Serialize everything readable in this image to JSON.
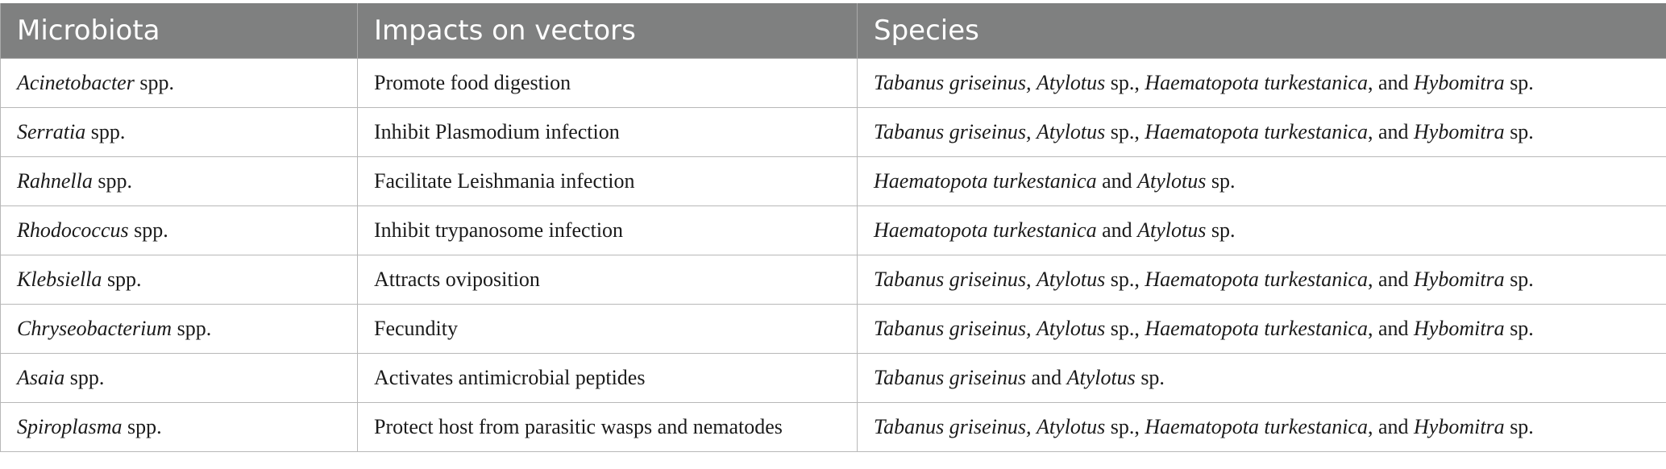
{
  "headers": [
    "Microbiota",
    "Impacts on vectors",
    "Species"
  ],
  "rows": [
    {
      "microbiota": {
        "genus": "Acinetobacter",
        "suffix": " spp."
      },
      "impact": "Promote food digestion",
      "species": [
        {
          "t": "Tabanus griseinus,",
          "i": true
        },
        {
          "t": " ",
          "i": false
        },
        {
          "t": "Atylotus",
          "i": true
        },
        {
          "t": " sp., ",
          "i": false
        },
        {
          "t": "Haematopota turkestanica",
          "i": true
        },
        {
          "t": ", and ",
          "i": false
        },
        {
          "t": "Hybomitra",
          "i": true
        },
        {
          "t": " sp.",
          "i": false
        }
      ]
    },
    {
      "microbiota": {
        "genus": "Serratia",
        "suffix": " spp."
      },
      "impact": "Inhibit Plasmodium infection",
      "species": [
        {
          "t": "Tabanus griseinus,",
          "i": true
        },
        {
          "t": " ",
          "i": false
        },
        {
          "t": "Atylotus",
          "i": true
        },
        {
          "t": " sp., ",
          "i": false
        },
        {
          "t": "Haematopota turkestanica",
          "i": true
        },
        {
          "t": ", and ",
          "i": false
        },
        {
          "t": "Hybomitra",
          "i": true
        },
        {
          "t": " sp.",
          "i": false
        }
      ]
    },
    {
      "microbiota": {
        "genus": "Rahnella",
        "suffix": " spp."
      },
      "impact": "Facilitate Leishmania infection",
      "species": [
        {
          "t": "Haematopota turkestanica",
          "i": true
        },
        {
          "t": " and ",
          "i": false
        },
        {
          "t": "Atylotus",
          "i": true
        },
        {
          "t": " sp.",
          "i": false
        }
      ]
    },
    {
      "microbiota": {
        "genus": "Rhodococcus",
        "suffix": " spp."
      },
      "impact": "Inhibit trypanosome infection",
      "species": [
        {
          "t": "Haematopota turkestanica",
          "i": true
        },
        {
          "t": " and ",
          "i": false
        },
        {
          "t": "Atylotus",
          "i": true
        },
        {
          "t": " sp.",
          "i": false
        }
      ]
    },
    {
      "microbiota": {
        "genus": "Klebsiella",
        "suffix": " spp."
      },
      "impact": "Attracts oviposition",
      "species": [
        {
          "t": "Tabanus griseinus,",
          "i": true
        },
        {
          "t": " ",
          "i": false
        },
        {
          "t": "Atylotus",
          "i": true
        },
        {
          "t": " sp., ",
          "i": false
        },
        {
          "t": "Haematopota turkestanica",
          "i": true
        },
        {
          "t": ", and ",
          "i": false
        },
        {
          "t": "Hybomitra",
          "i": true
        },
        {
          "t": " sp.",
          "i": false
        }
      ]
    },
    {
      "microbiota": {
        "genus": "Chryseobacterium",
        "suffix": " spp."
      },
      "impact": "Fecundity",
      "species": [
        {
          "t": "Tabanus griseinus,",
          "i": true
        },
        {
          "t": " ",
          "i": false
        },
        {
          "t": "Atylotus",
          "i": true
        },
        {
          "t": " sp., ",
          "i": false
        },
        {
          "t": "Haematopota turkestanica",
          "i": true
        },
        {
          "t": ", and ",
          "i": false
        },
        {
          "t": "Hybomitra",
          "i": true
        },
        {
          "t": " sp.",
          "i": false
        }
      ]
    },
    {
      "microbiota": {
        "genus": "Asaia",
        "suffix": " spp."
      },
      "impact": "Activates antimicrobial peptides",
      "species": [
        {
          "t": "Tabanus griseinus",
          "i": true
        },
        {
          "t": " and ",
          "i": false
        },
        {
          "t": "Atylotus",
          "i": true
        },
        {
          "t": " sp.",
          "i": false
        }
      ]
    },
    {
      "microbiota": {
        "genus": "Spiroplasma",
        "suffix": " spp."
      },
      "impact": "Protect host from parasitic wasps and nematodes",
      "species": [
        {
          "t": "Tabanus griseinus,",
          "i": true
        },
        {
          "t": " ",
          "i": false
        },
        {
          "t": "Atylotus",
          "i": true
        },
        {
          "t": " sp., ",
          "i": false
        },
        {
          "t": "Haematopota turkestanica",
          "i": true
        },
        {
          "t": ", and ",
          "i": false
        },
        {
          "t": "Hybomitra",
          "i": true
        },
        {
          "t": " sp.",
          "i": false
        }
      ]
    }
  ]
}
